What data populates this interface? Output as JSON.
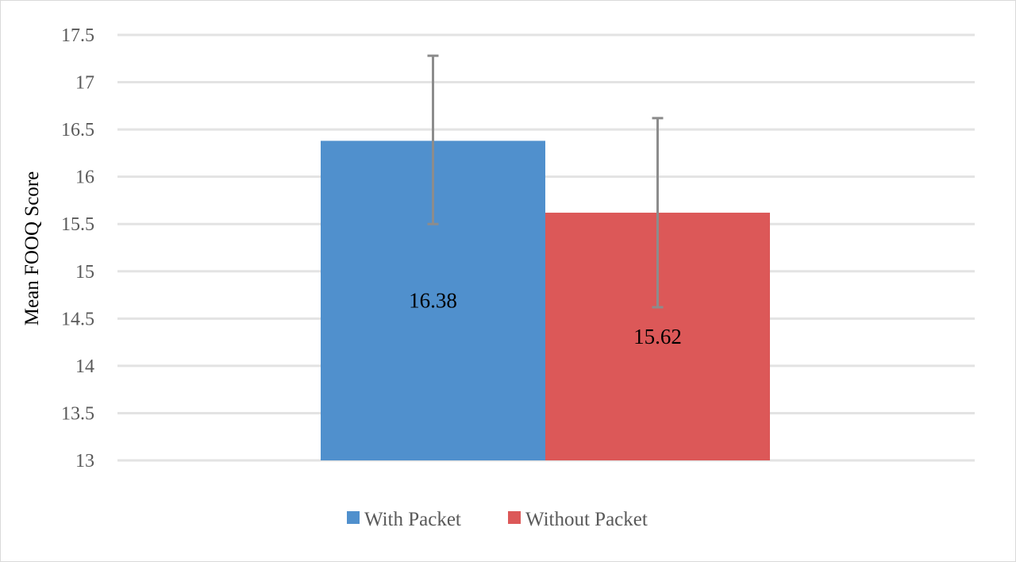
{
  "chart_data": {
    "type": "bar",
    "ylabel": "Mean FOOQ Score",
    "ylim": [
      13,
      17.5
    ],
    "yticks": [
      13,
      13.5,
      14,
      14.5,
      15,
      15.5,
      16,
      16.5,
      17,
      17.5
    ],
    "ytick_labels": [
      "13",
      "13.5",
      "14",
      "14.5",
      "15",
      "15.5",
      "16",
      "16.5",
      "17",
      "17.5"
    ],
    "grid": true,
    "legend_position": "bottom",
    "series": [
      {
        "name": "With Packet",
        "value": 16.38,
        "label": "16.38",
        "error_low": 15.5,
        "error_high": 17.28,
        "color": "#5090cd"
      },
      {
        "name": "Without Packet",
        "value": 15.62,
        "label": "15.62",
        "error_low": 14.62,
        "error_high": 16.62,
        "color": "#dc5858"
      }
    ]
  }
}
